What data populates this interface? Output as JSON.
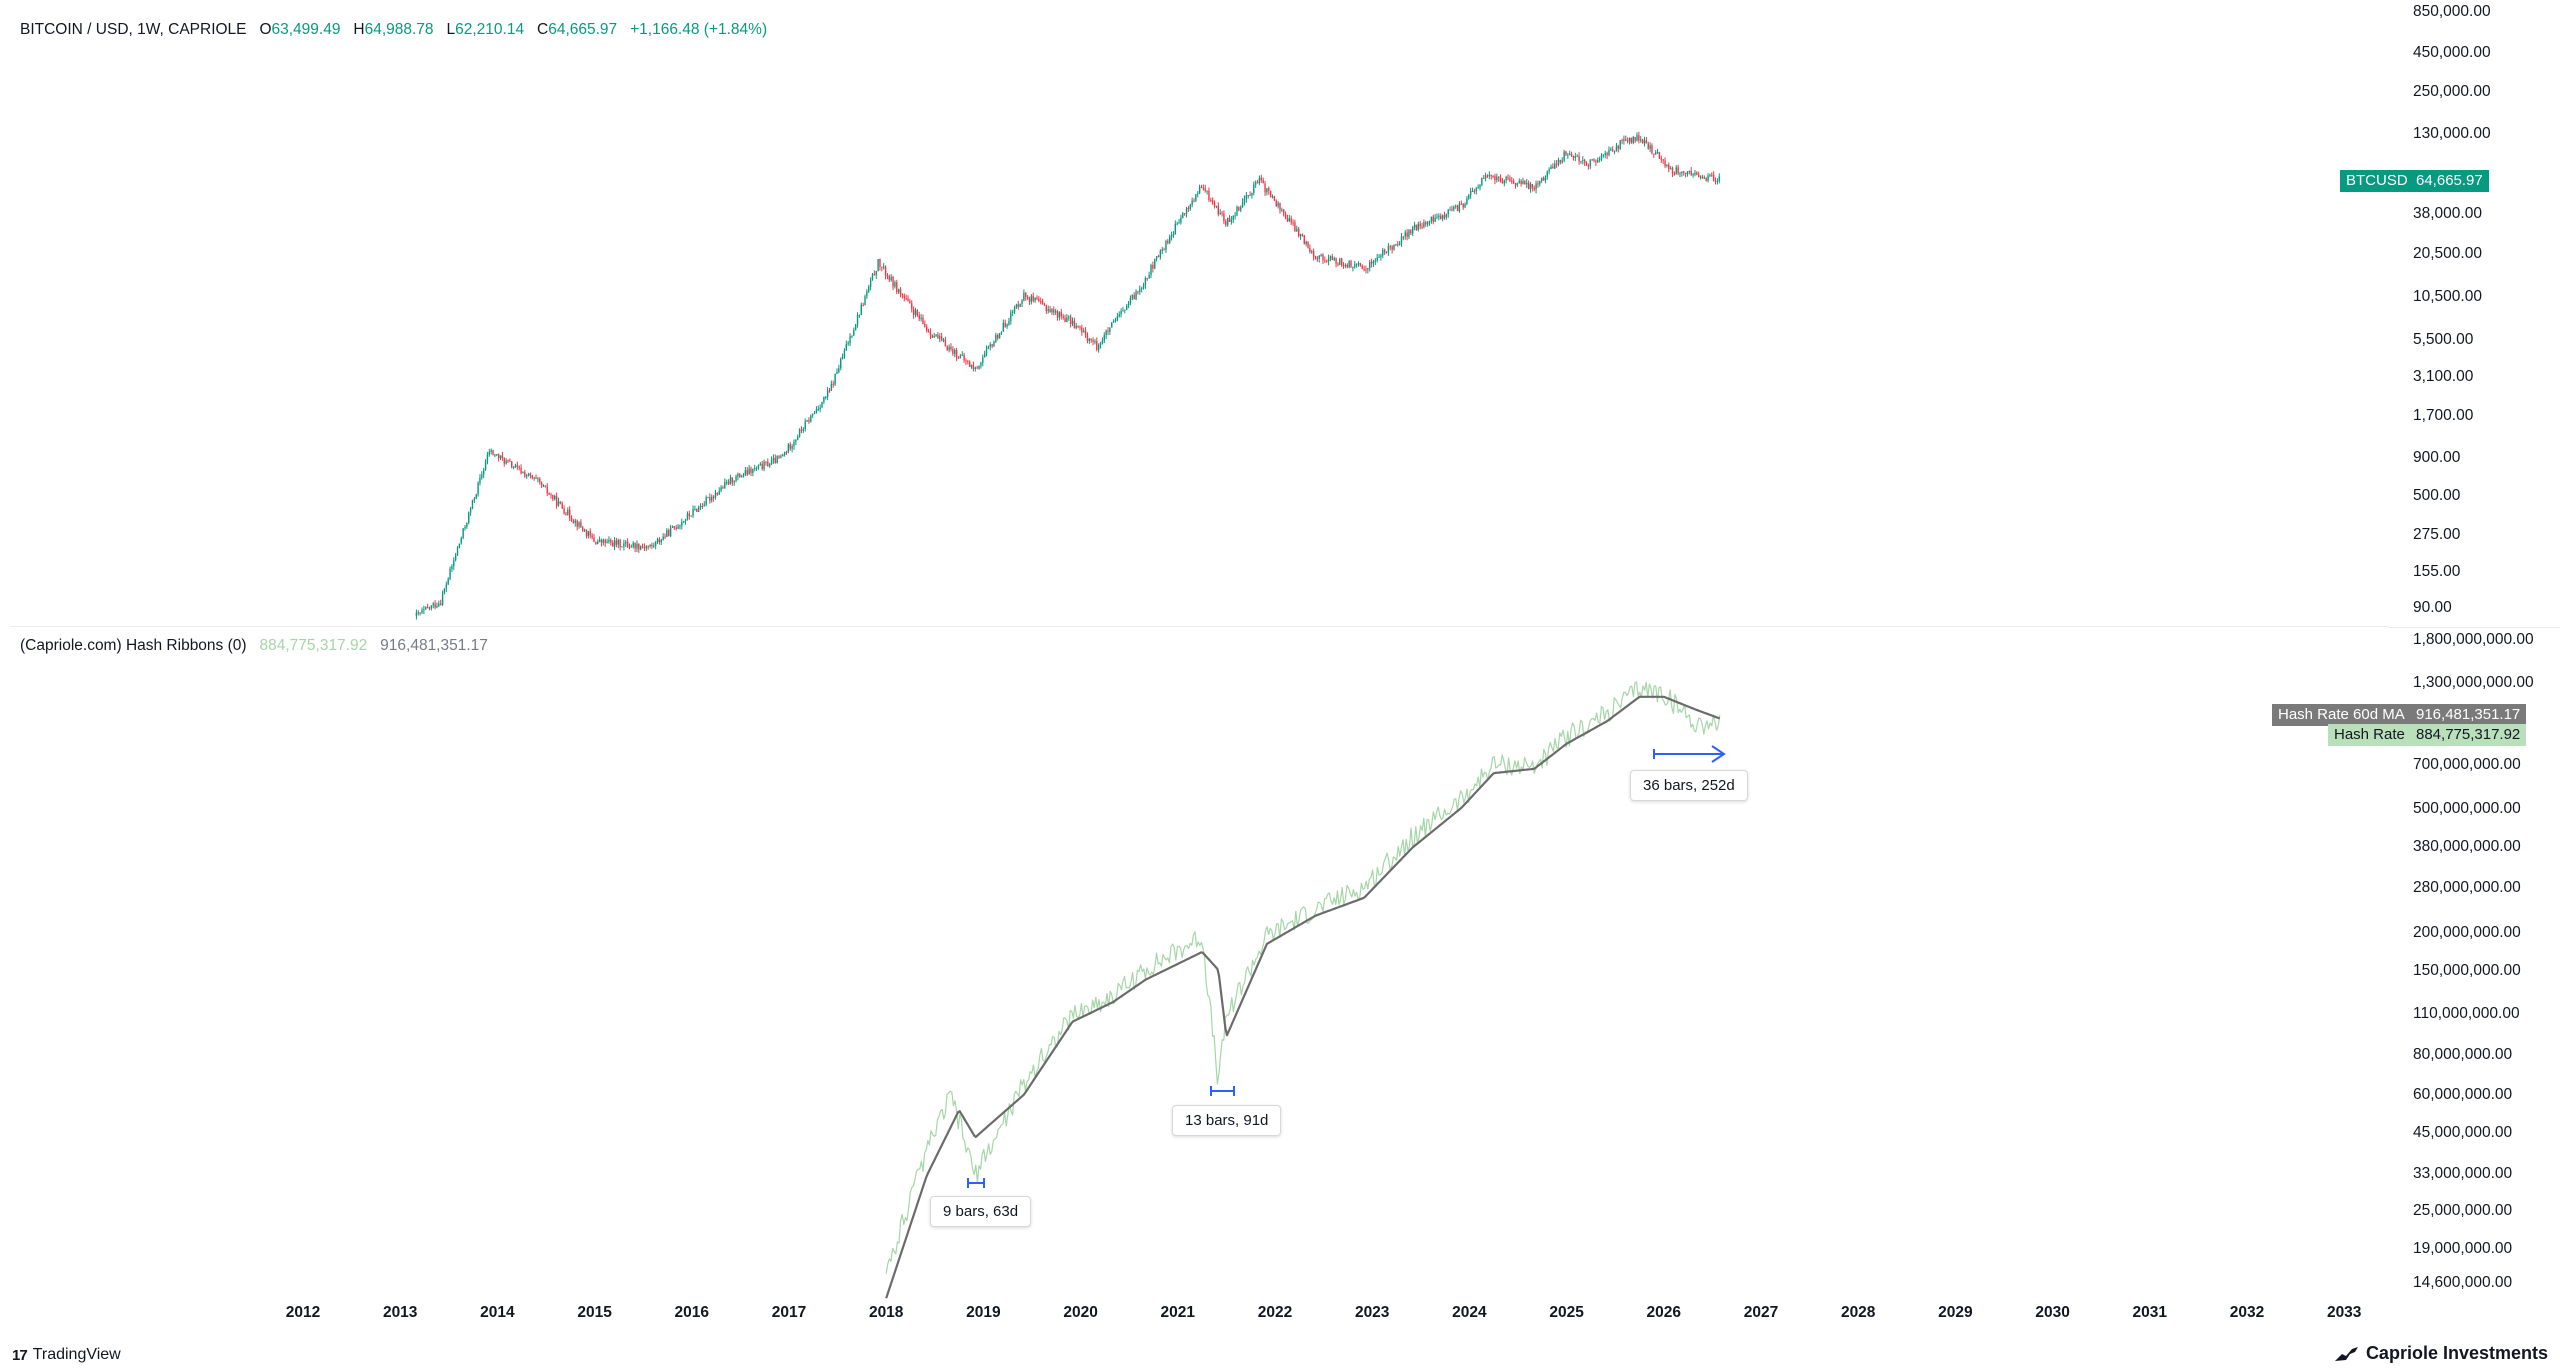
{
  "price_legend": {
    "symbol": "BITCOIN / USD, 1W, CAPRIOLE",
    "o_label": "O",
    "o": "63,499.49",
    "h_label": "H",
    "h": "64,988.78",
    "l_label": "L",
    "l": "62,210.14",
    "c_label": "C",
    "c": "64,665.97",
    "change": "+1,166.48 (+1.84%)"
  },
  "hash_legend": {
    "name": "(Capriole.com) Hash Ribbons (0)",
    "v1": "884,775,317.92",
    "v2": "916,481,351.17"
  },
  "price_scale": [
    "850,000.00",
    "450,000.00",
    "250,000.00",
    "130,000.00",
    "38,000.00",
    "20,500.00",
    "10,500.00",
    "5,500.00",
    "3,100.00",
    "1,700.00",
    "900.00",
    "500.00",
    "275.00",
    "155.00",
    "90.00"
  ],
  "hash_scale": [
    "1,800,000,000.00",
    "1,300,000,000.00",
    "700,000,000.00",
    "500,000,000.00",
    "380,000,000.00",
    "280,000,000.00",
    "200,000,000.00",
    "150,000,000.00",
    "110,000,000.00",
    "80,000,000.00",
    "60,000,000.00",
    "45,000,000.00",
    "33,000,000.00",
    "25,000,000.00",
    "19,000,000.00",
    "14,600,000.00"
  ],
  "tags": {
    "btc_label": "BTCUSD",
    "btc_value": "64,665.97",
    "ma_label": "Hash Rate 60d MA",
    "ma_value": "916,481,351.17",
    "hr_label": "Hash Rate",
    "hr_value": "884,775,317.92"
  },
  "years": [
    "2012",
    "2013",
    "2014",
    "2015",
    "2016",
    "2017",
    "2018",
    "2019",
    "2020",
    "2021",
    "2022",
    "2023",
    "2024",
    "2025",
    "2026",
    "2027",
    "2028",
    "2029",
    "2030",
    "2031",
    "2032",
    "2033"
  ],
  "callouts": {
    "c1": "9 bars, 63d",
    "c2": "13 bars, 91d",
    "c3": "36 bars, 252d"
  },
  "footer": {
    "left_logo": "17",
    "left": "TradingView",
    "right": "Capriole Investments"
  },
  "colors": {
    "up": "#089981",
    "down": "#f23645",
    "hash_rate": "#a5d6a7",
    "hash_ma": "#6b6b6b",
    "ruler": "#2962ff"
  },
  "chart_data": [
    {
      "type": "line",
      "name": "BTCUSD weekly (approx.)",
      "scale": "log",
      "x": [
        "2013-03",
        "2013-06",
        "2013-12",
        "2014-06",
        "2015-01",
        "2015-08",
        "2016-06",
        "2016-12",
        "2017-06",
        "2017-12",
        "2018-06",
        "2018-12",
        "2019-06",
        "2019-12",
        "2020-03",
        "2020-08",
        "2021-01",
        "2021-04",
        "2021-07",
        "2021-11",
        "2022-06",
        "2022-12",
        "2023-06",
        "2023-12",
        "2024-03",
        "2024-09",
        "2025-01",
        "2025-04",
        "2025-08",
        "2025-10",
        "2026-02",
        "2026-06",
        "2026-08"
      ],
      "y": [
        80,
        100,
        1000,
        620,
        250,
        230,
        650,
        900,
        2500,
        18000,
        6500,
        3500,
        11000,
        7200,
        5000,
        11500,
        33000,
        58000,
        33000,
        64000,
        20000,
        16500,
        30000,
        43000,
        68000,
        58000,
        98000,
        82000,
        115000,
        122000,
        75000,
        67000,
        64666
      ]
    },
    {
      "type": "line",
      "name": "Hash Rate",
      "scale": "log",
      "x": [
        "2018-01",
        "2018-06",
        "2018-09",
        "2018-12",
        "2019-06",
        "2019-12",
        "2020-05",
        "2020-09",
        "2021-04",
        "2021-06",
        "2021-07",
        "2021-12",
        "2022-06",
        "2022-12",
        "2023-06",
        "2023-12",
        "2024-04",
        "2024-09",
        "2025-01",
        "2025-06",
        "2025-10",
        "2026-01",
        "2026-05",
        "2026-08"
      ],
      "y": [
        14600000,
        36000000,
        55000000,
        30000000,
        60000000,
        100000000,
        115000000,
        140000000,
        180000000,
        60000000,
        100000000,
        180000000,
        220000000,
        260000000,
        380000000,
        500000000,
        650000000,
        640000000,
        800000000,
        950000000,
        1150000000,
        1100000000,
        880000000,
        884775318
      ]
    },
    {
      "type": "line",
      "name": "Hash Rate 60d MA",
      "scale": "log",
      "x": [
        "2018-01",
        "2018-06",
        "2018-10",
        "2018-12",
        "2019-06",
        "2019-12",
        "2020-05",
        "2020-09",
        "2021-04",
        "2021-06",
        "2021-07",
        "2021-12",
        "2022-06",
        "2022-12",
        "2023-06",
        "2023-12",
        "2024-04",
        "2024-09",
        "2025-01",
        "2025-06",
        "2025-10",
        "2026-01",
        "2026-05",
        "2026-08"
      ],
      "y": [
        12000000,
        30000000,
        49000000,
        40000000,
        55000000,
        95000000,
        110000000,
        130000000,
        160000000,
        140000000,
        85000000,
        170000000,
        210000000,
        240000000,
        350000000,
        470000000,
        610000000,
        630000000,
        760000000,
        900000000,
        1080000000,
        1080000000,
        980000000,
        916481351
      ]
    }
  ]
}
